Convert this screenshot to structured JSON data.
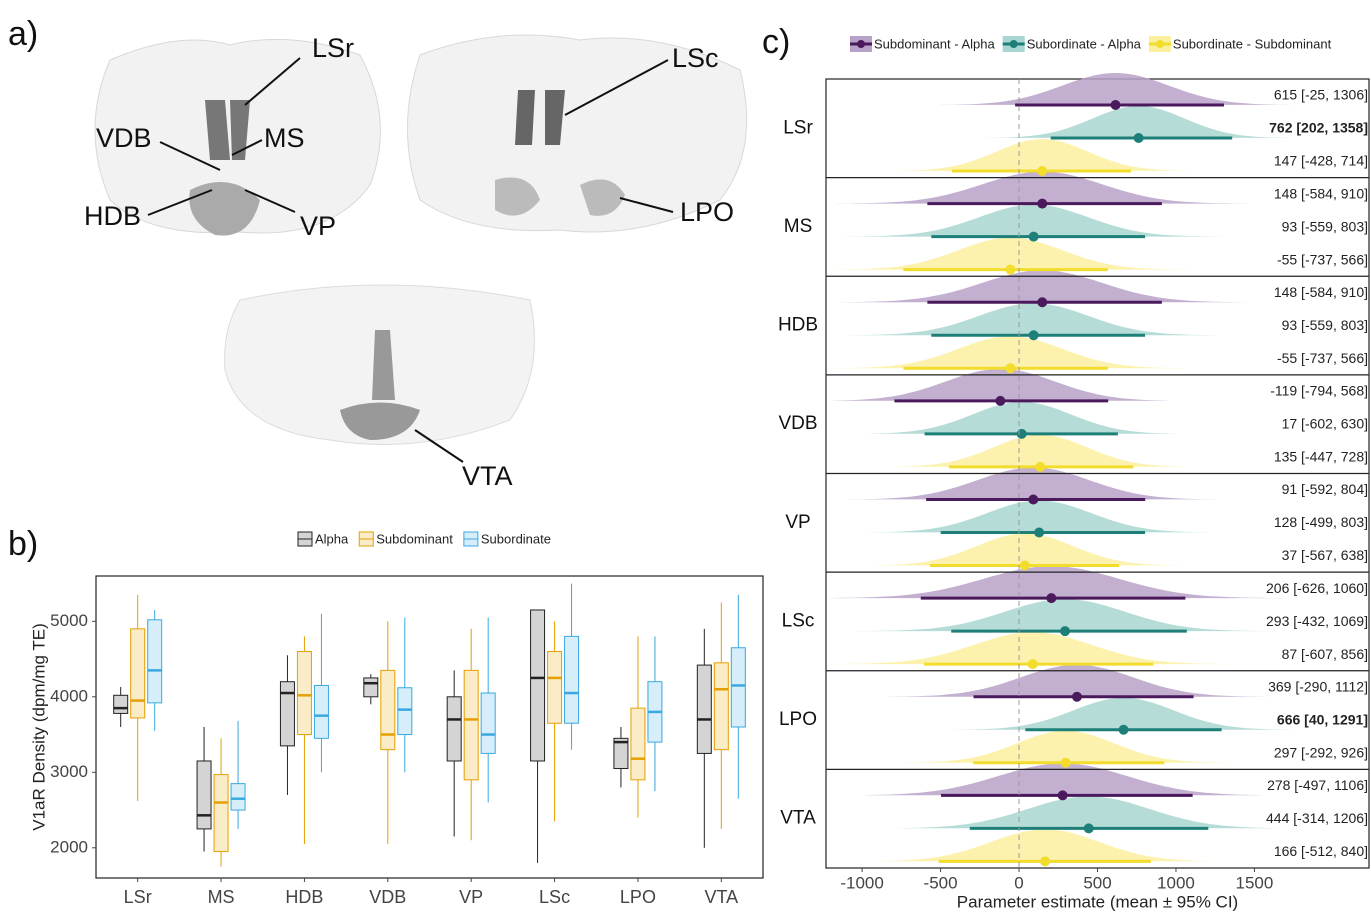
{
  "panel_a": {
    "label": "a)",
    "annotations": [
      "LSr",
      "VDB",
      "MS",
      "HDB",
      "VP",
      "LSc",
      "LPO",
      "VTA"
    ]
  },
  "panel_b": {
    "label": "b)"
  },
  "panel_c": {
    "label": "c)"
  },
  "chart_data": [
    {
      "type": "box",
      "ylabel": "V1aR Density (dpm/mg TE)",
      "categories": [
        "LSr",
        "MS",
        "HDB",
        "VDB",
        "VP",
        "LSc",
        "LPO",
        "VTA"
      ],
      "series": [
        {
          "name": "Alpha",
          "color": "#222222",
          "fill": "#d4d4d4",
          "min": [
            3600,
            1950,
            2700,
            3900,
            2150,
            1800,
            2800,
            2000
          ],
          "q1": [
            3780,
            2250,
            3350,
            4000,
            3150,
            3150,
            3050,
            3250
          ],
          "median": [
            3850,
            2430,
            4050,
            4180,
            3700,
            4250,
            3400,
            3700
          ],
          "q3": [
            4020,
            3150,
            4200,
            4250,
            4000,
            5150,
            3450,
            4420
          ],
          "max": [
            4130,
            3600,
            4550,
            4300,
            4350,
            5150,
            3600,
            4900
          ]
        },
        {
          "name": "Subdominant",
          "color": "#e69f00",
          "fill": "#fbecc8",
          "min": [
            2620,
            1750,
            2050,
            2050,
            2100,
            2350,
            2400,
            2250
          ],
          "q1": [
            3720,
            1950,
            3500,
            3300,
            2900,
            3650,
            2900,
            3300
          ],
          "median": [
            3950,
            2600,
            4020,
            3500,
            3700,
            4250,
            3180,
            4100
          ],
          "q3": [
            4900,
            2970,
            4600,
            4350,
            4350,
            4600,
            3850,
            4450
          ],
          "max": [
            5350,
            3450,
            4800,
            5000,
            4900,
            5000,
            4800,
            5250
          ]
        },
        {
          "name": "Subordinate",
          "color": "#3aa8e0",
          "fill": "#d6eefa",
          "min": [
            3550,
            2250,
            3000,
            3000,
            2600,
            3300,
            2750,
            2650
          ],
          "q1": [
            3920,
            2500,
            3450,
            3500,
            3250,
            3650,
            3400,
            3600
          ],
          "median": [
            4350,
            2650,
            3750,
            3830,
            3500,
            4050,
            3800,
            4150
          ],
          "q3": [
            5020,
            2850,
            4150,
            4120,
            4050,
            4800,
            4200,
            4650
          ],
          "max": [
            5150,
            3680,
            5100,
            5050,
            5050,
            5500,
            4800,
            5350
          ]
        }
      ],
      "ylim": [
        1600,
        5600
      ],
      "yticks": [
        2000,
        3000,
        4000,
        5000
      ],
      "legend": "top"
    },
    {
      "type": "forest",
      "xlabel": "Parameter estimate (mean ± 95% CI)",
      "categories": [
        "LSr",
        "MS",
        "HDB",
        "VDB",
        "VP",
        "LSc",
        "LPO",
        "VTA"
      ],
      "series": [
        {
          "name": "Subdominant - Alpha",
          "color": "#4a1a5c",
          "fill": "#b9a2c8",
          "values": [
            615,
            148,
            148,
            -119,
            91,
            206,
            369,
            278
          ],
          "lower": [
            -25,
            -584,
            -584,
            -794,
            -592,
            -626,
            -290,
            -497
          ],
          "upper": [
            1306,
            910,
            910,
            568,
            804,
            1060,
            1112,
            1106
          ],
          "value_labels": [
            "615 [-25, 1306]",
            "148 [-584, 910]",
            "148 [-584, 910]",
            "-119 [-794, 568]",
            "91 [-592, 804]",
            "206 [-626, 1060]",
            "369 [-290, 1112]",
            "278 [-497, 1106]"
          ],
          "bold": [
            false,
            false,
            false,
            false,
            false,
            false,
            false,
            false
          ]
        },
        {
          "name": "Subordinate - Alpha",
          "color": "#1d7f78",
          "fill": "#a9d6d0",
          "values": [
            762,
            93,
            93,
            17,
            128,
            293,
            666,
            444
          ],
          "lower": [
            202,
            -559,
            -559,
            -602,
            -499,
            -432,
            40,
            -314
          ],
          "upper": [
            1358,
            803,
            803,
            630,
            803,
            1069,
            1291,
            1206
          ],
          "value_labels": [
            "762 [202, 1358]",
            "93 [-559, 803]",
            "93 [-559, 803]",
            "17 [-602, 630]",
            "128 [-499, 803]",
            "293 [-432, 1069]",
            "666 [40, 1291]",
            "444 [-314, 1206]"
          ],
          "bold": [
            true,
            false,
            false,
            false,
            false,
            false,
            true,
            false
          ]
        },
        {
          "name": "Subordinate - Subdominant",
          "color": "#f2dc2c",
          "fill": "#fbf0a0",
          "values": [
            147,
            -55,
            -55,
            135,
            37,
            87,
            297,
            166
          ],
          "lower": [
            -428,
            -737,
            -737,
            -447,
            -567,
            -607,
            -292,
            -512
          ],
          "upper": [
            714,
            566,
            566,
            728,
            638,
            856,
            926,
            840
          ],
          "value_labels": [
            "147 [-428, 714]",
            "-55 [-737, 566]",
            "-55 [-737, 566]",
            "135 [-447, 728]",
            "37 [-567, 638]",
            "87 [-607, 856]",
            "297 [-292, 926]",
            "166 [-512, 840]"
          ],
          "bold": [
            false,
            false,
            false,
            false,
            false,
            false,
            false,
            false
          ]
        }
      ],
      "xlim": [
        -1230,
        2230
      ],
      "xticks": [
        -1000,
        -500,
        0,
        500,
        1000,
        1500
      ],
      "refline": 0,
      "legend": "top"
    }
  ]
}
